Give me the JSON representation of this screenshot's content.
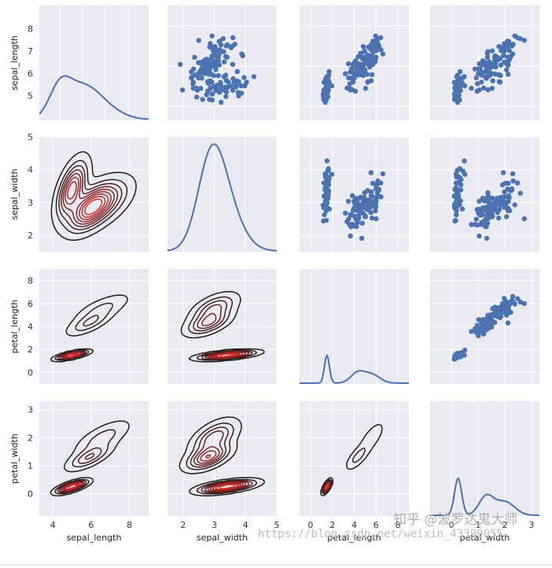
{
  "chart_data": {
    "type": "pairplot",
    "variables": [
      "sepal_length",
      "sepal_width",
      "petal_length",
      "petal_width"
    ],
    "ranges": {
      "sepal_length": [
        3.3,
        9.0
      ],
      "sepal_width": [
        1.5,
        5.0
      ],
      "petal_length": [
        -1.0,
        9.0
      ],
      "petal_width": [
        -0.8,
        3.3
      ]
    },
    "ticks": {
      "sepal_length": [
        4,
        6,
        8
      ],
      "sepal_width": [
        2,
        3,
        4,
        5
      ],
      "petal_length": [
        0,
        2,
        4,
        6,
        8
      ],
      "petal_width": [
        0,
        1,
        2,
        3
      ]
    },
    "diag_ticks": {
      "sepal_length": [
        5,
        6,
        7,
        8
      ]
    },
    "upper_kind": "scatter",
    "lower_kind": "kde",
    "diag_kind": "kde",
    "grid": true,
    "colors": {
      "background": "#eaeaf2",
      "points": "#4c72b0",
      "line": "#4c72b0",
      "kde_outer": "#1a1a1a",
      "kde_inner": "#d62a2a"
    },
    "clusters": [
      {
        "mean": [
          5.0,
          3.4,
          1.5,
          0.25
        ],
        "sd": [
          0.35,
          0.38,
          0.17,
          0.1
        ],
        "n": 50
      },
      {
        "mean": [
          5.9,
          2.8,
          4.3,
          1.3
        ],
        "sd": [
          0.5,
          0.31,
          0.47,
          0.2
        ],
        "n": 50
      },
      {
        "mean": [
          6.6,
          3.0,
          5.6,
          2.0
        ],
        "sd": [
          0.63,
          0.32,
          0.55,
          0.27
        ],
        "n": 50
      }
    ]
  },
  "watermark": {
    "url": "https://blog.csdn.net/weixin_43399055",
    "brand": "知乎 @波罗达鬼大师"
  }
}
